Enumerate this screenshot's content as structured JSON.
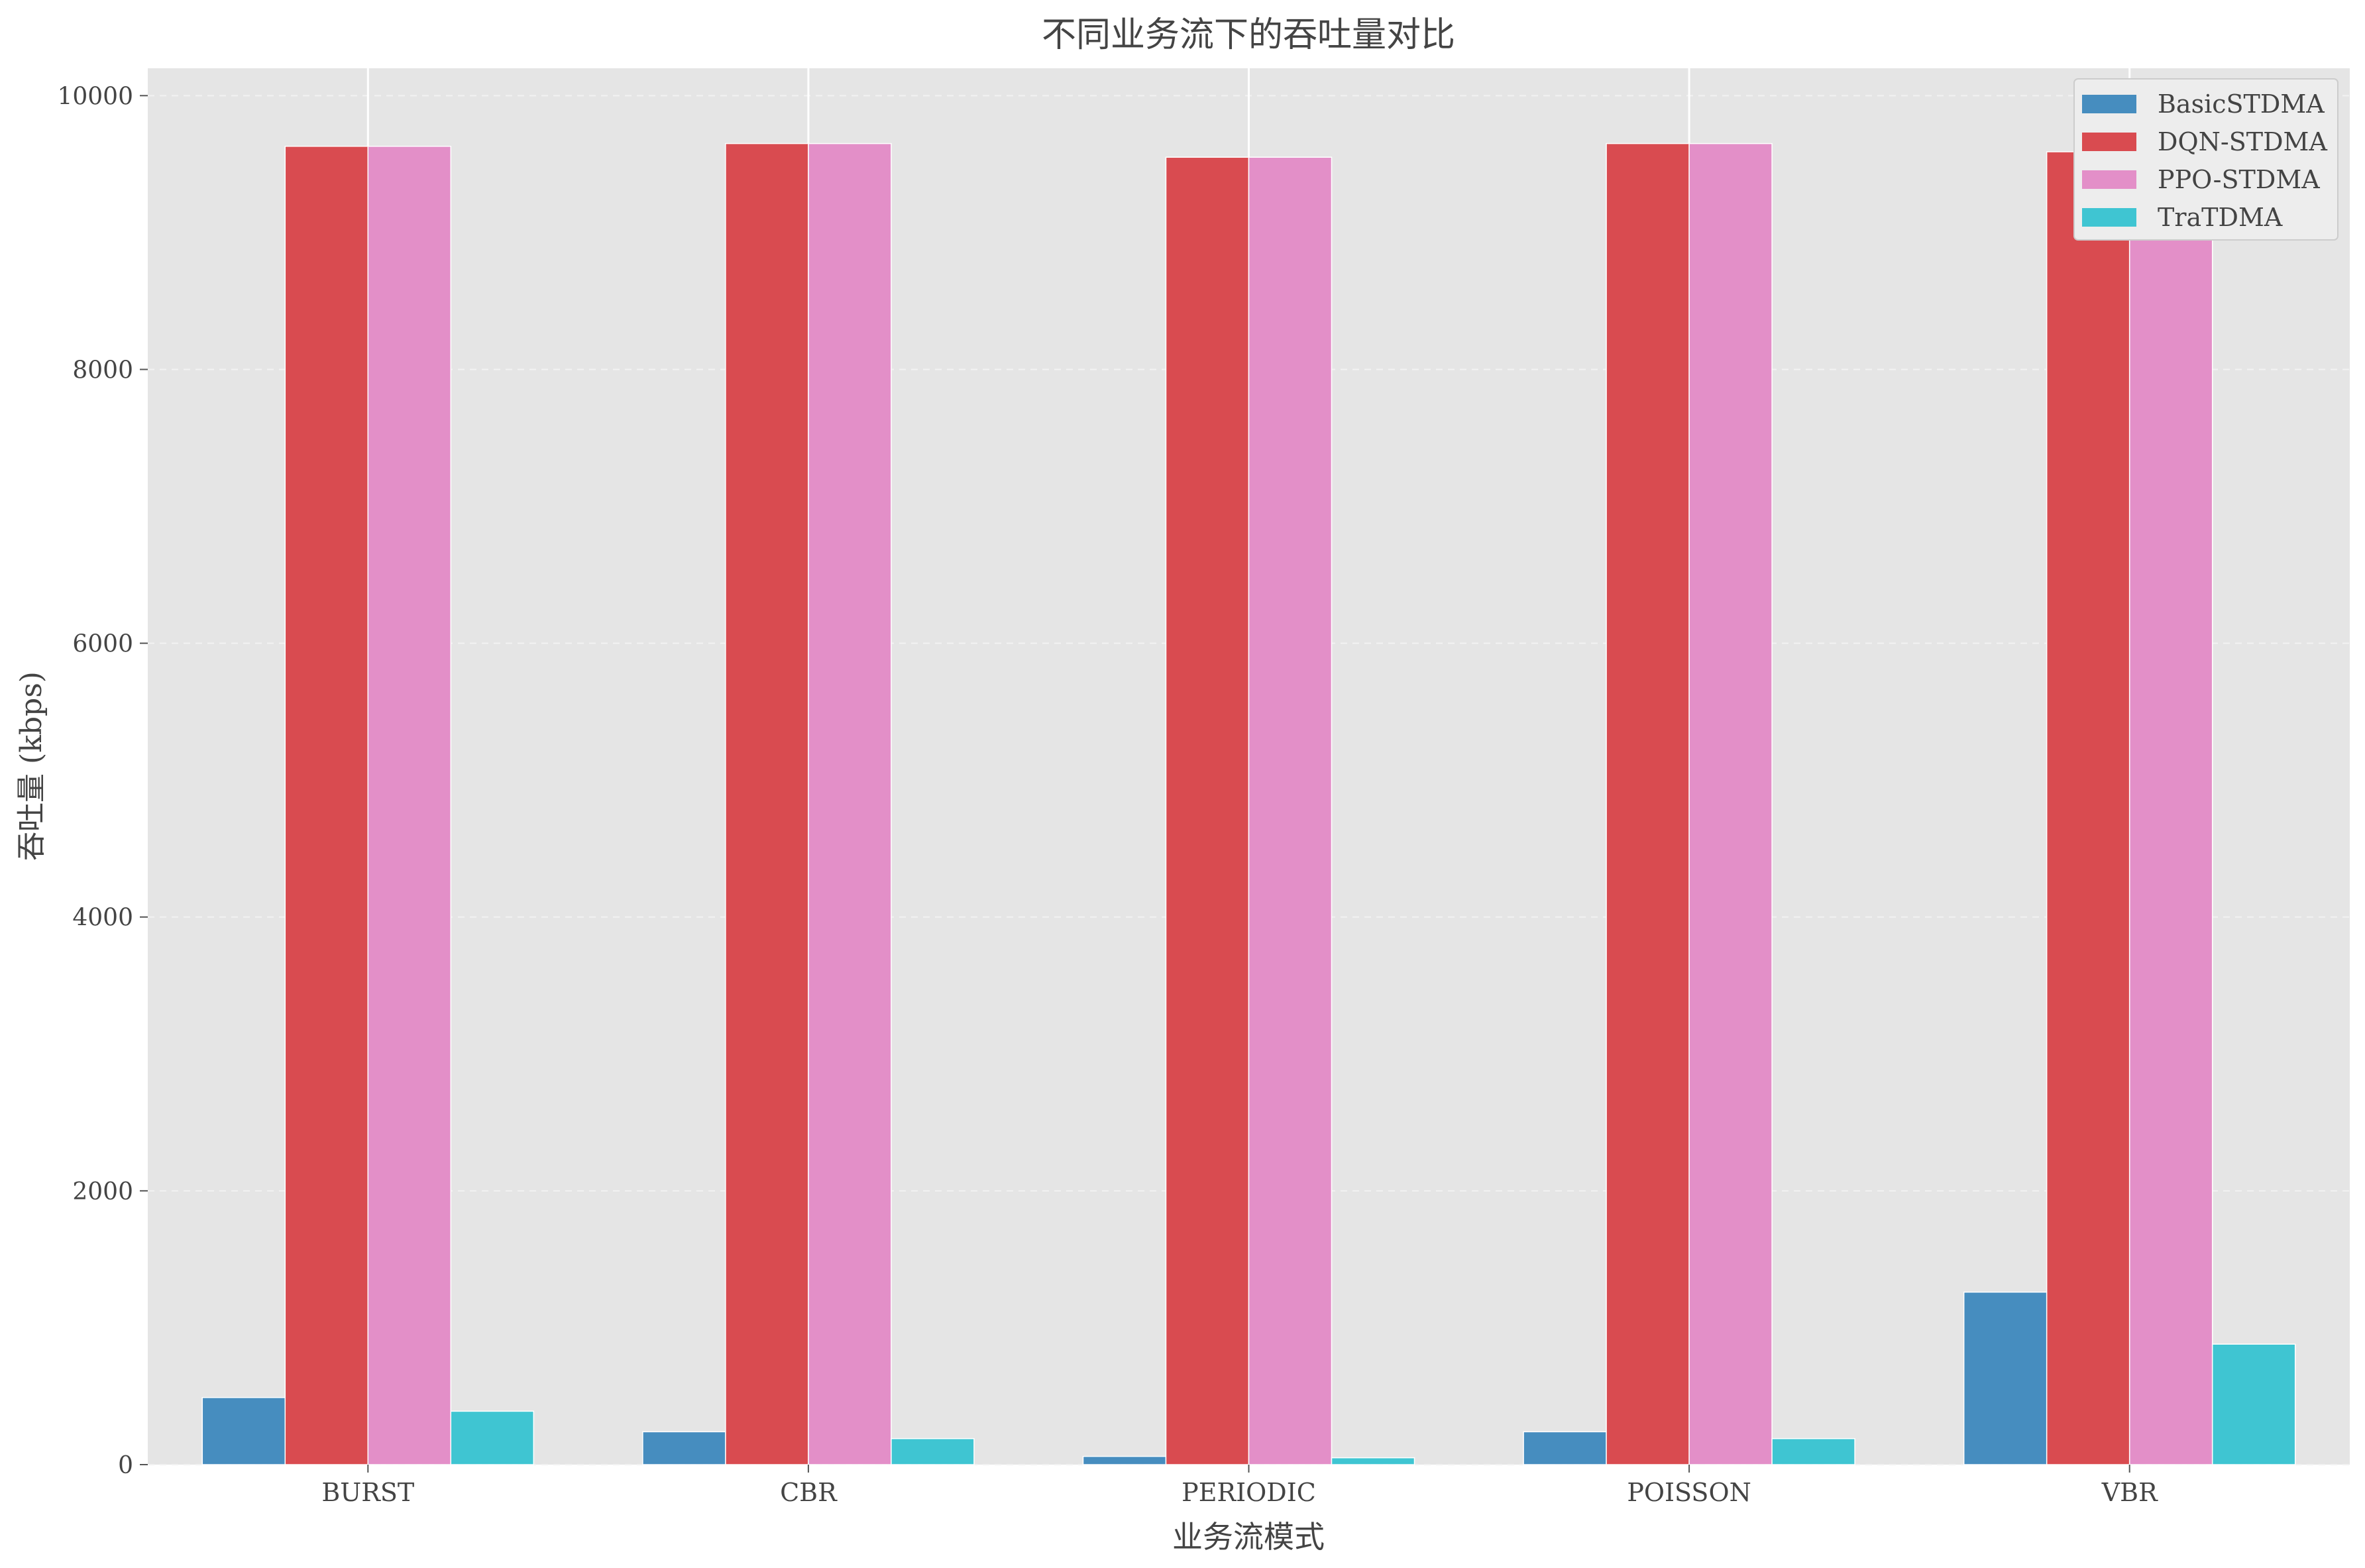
{
  "chart_data": {
    "type": "bar",
    "title": "不同业务流下的吞吐量对比",
    "xlabel": "业务流模式",
    "ylabel": "吞吐量 (kbps)",
    "categories": [
      "BURST",
      "CBR",
      "PERIODIC",
      "POISSON",
      "VBR"
    ],
    "ylim": [
      0,
      10200
    ],
    "yticks": [
      0,
      2000,
      4000,
      6000,
      8000,
      10000
    ],
    "grid": true,
    "legend_position": "top-right",
    "series": [
      {
        "name": "BasicSTDMA",
        "color": "#468dbf",
        "values": [
          490,
          240,
          60,
          240,
          1260
        ]
      },
      {
        "name": "DQN-STDMA",
        "color": "#d94b50",
        "values": [
          9630,
          9650,
          9550,
          9650,
          9590
        ]
      },
      {
        "name": "PPO-STDMA",
        "color": "#e38fc8",
        "values": [
          9630,
          9650,
          9550,
          9650,
          9590
        ]
      },
      {
        "name": "TraTDMA",
        "color": "#3fc5d2",
        "values": [
          390,
          190,
          50,
          190,
          880
        ]
      }
    ]
  }
}
